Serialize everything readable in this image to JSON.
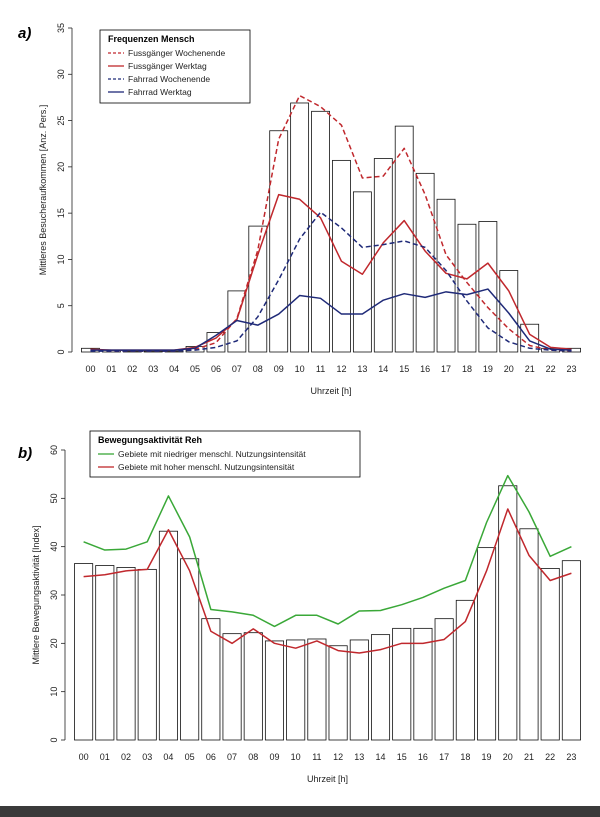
{
  "chart_data": [
    {
      "panel_label": "a)",
      "type": "bar+line",
      "legend_title": "Frequenzen Mensch",
      "xlabel": "Uhrzeit [h]",
      "ylabel": "Mittleres Besucheraufkommen [Anz. Pers.]",
      "ylim": [
        0,
        35
      ],
      "yticks": [
        0,
        5,
        10,
        15,
        20,
        25,
        30,
        35
      ],
      "categories": [
        "00",
        "01",
        "02",
        "03",
        "04",
        "05",
        "06",
        "07",
        "08",
        "09",
        "10",
        "11",
        "12",
        "13",
        "14",
        "15",
        "16",
        "17",
        "18",
        "19",
        "20",
        "21",
        "22",
        "23"
      ],
      "bars": [
        0.4,
        0.2,
        0.1,
        0.1,
        0.1,
        0.6,
        2.1,
        6.6,
        13.6,
        23.9,
        26.9,
        26.0,
        20.7,
        17.3,
        20.9,
        24.4,
        19.3,
        16.5,
        13.8,
        14.1,
        8.8,
        3.0,
        0.4,
        0.4
      ],
      "series": [
        {
          "name": "Fussgänger Wochenende",
          "color": "#c0282d",
          "dash": true,
          "values": [
            0.2,
            0.1,
            0.1,
            0.1,
            0.1,
            0.3,
            1.0,
            3.6,
            11.0,
            23.0,
            27.7,
            26.5,
            24.5,
            18.8,
            19.0,
            22.0,
            17.0,
            10.5,
            7.5,
            4.8,
            2.5,
            0.7,
            0.2,
            0.1
          ]
        },
        {
          "name": "Fussgänger Werktag",
          "color": "#c0282d",
          "dash": false,
          "values": [
            0.3,
            0.2,
            0.2,
            0.2,
            0.2,
            0.5,
            1.5,
            3.5,
            10.5,
            17.0,
            16.5,
            14.5,
            9.8,
            8.4,
            11.8,
            14.2,
            10.9,
            8.5,
            7.9,
            9.6,
            6.6,
            1.9,
            0.5,
            0.3
          ]
        },
        {
          "name": "Fahrrad Wochenende",
          "color": "#1f2a78",
          "dash": true,
          "values": [
            0.1,
            0.1,
            0.1,
            0.1,
            0.1,
            0.2,
            0.5,
            1.2,
            3.8,
            7.8,
            12.2,
            15.1,
            13.4,
            11.3,
            11.6,
            12.0,
            11.3,
            8.8,
            5.5,
            2.6,
            1.1,
            0.4,
            0.2,
            0.1
          ]
        },
        {
          "name": "Fahrrad Werktag",
          "color": "#1f2a78",
          "dash": false,
          "values": [
            0.2,
            0.2,
            0.2,
            0.2,
            0.2,
            0.4,
            1.8,
            3.4,
            2.9,
            4.1,
            6.1,
            5.8,
            4.1,
            4.1,
            5.6,
            6.3,
            5.9,
            6.5,
            6.2,
            6.8,
            4.2,
            1.2,
            0.3,
            0.2
          ]
        }
      ]
    },
    {
      "panel_label": "b)",
      "type": "bar+line",
      "legend_title": "Bewegungsaktivität Reh",
      "xlabel": "Uhrzeit [h]",
      "ylabel": "Mittlere Bewegungsaktivität [Index]",
      "ylim": [
        0,
        60
      ],
      "yticks": [
        0,
        10,
        20,
        30,
        40,
        50,
        60
      ],
      "categories": [
        "00",
        "01",
        "02",
        "03",
        "04",
        "05",
        "06",
        "07",
        "08",
        "09",
        "10",
        "11",
        "12",
        "13",
        "14",
        "15",
        "16",
        "17",
        "18",
        "19",
        "20",
        "21",
        "22",
        "23"
      ],
      "bars": [
        36.5,
        36.1,
        35.7,
        35.3,
        43.2,
        37.5,
        25.1,
        22.0,
        22.2,
        20.5,
        20.7,
        20.9,
        19.5,
        20.7,
        21.8,
        23.1,
        23.1,
        25.1,
        28.9,
        39.8,
        52.6,
        43.7,
        35.5,
        37.1
      ],
      "series": [
        {
          "name": "Gebiete mit niedriger menschl. Nutzungsintensität",
          "color": "#3aa838",
          "dash": false,
          "values": [
            41.0,
            39.3,
            39.5,
            41.0,
            50.5,
            42.0,
            27.0,
            26.5,
            25.8,
            23.5,
            25.8,
            25.8,
            24.0,
            26.7,
            26.8,
            28.0,
            29.5,
            31.4,
            33.0,
            45.0,
            54.7,
            47.2,
            38.0,
            40.0
          ]
        },
        {
          "name": "Gebiete mit hoher menschl. Nutzungsintensität",
          "color": "#c0282d",
          "dash": false,
          "values": [
            33.8,
            34.2,
            35.0,
            35.3,
            43.5,
            35.0,
            22.5,
            20.0,
            23.0,
            20.0,
            19.0,
            20.5,
            18.5,
            18.0,
            18.7,
            20.0,
            20.0,
            20.8,
            24.5,
            35.0,
            47.8,
            38.2,
            33.0,
            34.5
          ]
        }
      ]
    }
  ]
}
